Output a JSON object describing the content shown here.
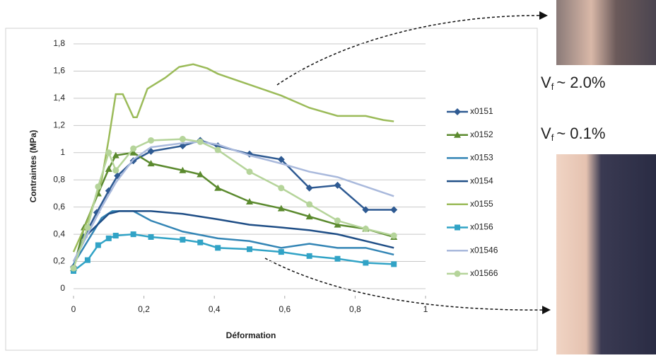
{
  "chart_data": {
    "type": "line",
    "xlabel": "Déformation",
    "ylabel": "Contraintes (MPa)",
    "xlim": [
      0,
      1
    ],
    "ylim": [
      0,
      1.8
    ],
    "xticks": [
      0,
      {
        "value": 0.2,
        "label": "0,2"
      },
      {
        "value": 0.4,
        "label": "0,4"
      },
      {
        "value": 0.6,
        "label": "0,6"
      },
      {
        "value": 0.8,
        "label": "0,8"
      },
      1
    ],
    "yticks": [
      0,
      {
        "value": 0.2,
        "label": "0,2"
      },
      {
        "value": 0.4,
        "label": "0,4"
      },
      {
        "value": 0.6,
        "label": "0,6"
      },
      {
        "value": 0.8,
        "label": "0,8"
      },
      1,
      {
        "value": 1.2,
        "label": "1,2"
      },
      {
        "value": 1.4,
        "label": "1,4"
      },
      {
        "value": 1.6,
        "label": "1,6"
      },
      {
        "value": 1.8,
        "label": "1,8"
      }
    ],
    "grid": true,
    "legend": "right",
    "series": [
      {
        "name": "x0151",
        "color": "#2e5a92",
        "marker": "diamond",
        "x": [
          0,
          0.03,
          0.066,
          0.1,
          0.125,
          0.17,
          0.22,
          0.31,
          0.36,
          0.41,
          0.5,
          0.59,
          0.67,
          0.75,
          0.83,
          0.91
        ],
        "values": [
          0.16,
          0.38,
          0.56,
          0.72,
          0.83,
          0.94,
          1.01,
          1.05,
          1.09,
          1.05,
          0.99,
          0.95,
          0.74,
          0.76,
          0.58,
          0.58
        ]
      },
      {
        "name": "x0152",
        "color": "#5b8a2e",
        "marker": "triangle",
        "x": [
          0,
          0.03,
          0.07,
          0.1,
          0.12,
          0.17,
          0.22,
          0.31,
          0.36,
          0.41,
          0.5,
          0.59,
          0.67,
          0.75,
          0.83,
          0.91
        ],
        "values": [
          0.15,
          0.45,
          0.7,
          0.88,
          0.98,
          1.0,
          0.92,
          0.87,
          0.84,
          0.74,
          0.64,
          0.59,
          0.53,
          0.47,
          0.44,
          0.38
        ]
      },
      {
        "name": "x0153",
        "color": "#3385b5",
        "marker": "none",
        "x": [
          0,
          0.04,
          0.08,
          0.11,
          0.17,
          0.22,
          0.31,
          0.41,
          0.5,
          0.59,
          0.67,
          0.75,
          0.83,
          0.91
        ],
        "values": [
          0.18,
          0.35,
          0.52,
          0.57,
          0.57,
          0.5,
          0.42,
          0.37,
          0.35,
          0.3,
          0.33,
          0.3,
          0.3,
          0.25
        ]
      },
      {
        "name": "x0154",
        "color": "#1f4e86",
        "marker": "none",
        "x": [
          0,
          0.04,
          0.1,
          0.13,
          0.22,
          0.31,
          0.41,
          0.5,
          0.59,
          0.67,
          0.75,
          0.83,
          0.91
        ],
        "values": [
          0.2,
          0.4,
          0.55,
          0.57,
          0.57,
          0.55,
          0.51,
          0.47,
          0.45,
          0.43,
          0.4,
          0.35,
          0.3
        ]
      },
      {
        "name": "x0155",
        "color": "#9bbb59",
        "marker": "none",
        "x": [
          0,
          0.04,
          0.08,
          0.1,
          0.12,
          0.14,
          0.17,
          0.18,
          0.21,
          0.26,
          0.3,
          0.34,
          0.38,
          0.41,
          0.5,
          0.59,
          0.67,
          0.75,
          0.83,
          0.88,
          0.91
        ],
        "values": [
          0.27,
          0.5,
          0.8,
          1.1,
          1.43,
          1.43,
          1.26,
          1.26,
          1.47,
          1.55,
          1.63,
          1.65,
          1.62,
          1.58,
          1.5,
          1.42,
          1.33,
          1.27,
          1.27,
          1.24,
          1.23
        ]
      },
      {
        "name": "x0156",
        "color": "#31a3c6",
        "marker": "square",
        "x": [
          0,
          0.04,
          0.07,
          0.1,
          0.12,
          0.17,
          0.22,
          0.31,
          0.36,
          0.41,
          0.5,
          0.59,
          0.67,
          0.75,
          0.83,
          0.91
        ],
        "values": [
          0.13,
          0.21,
          0.32,
          0.37,
          0.39,
          0.4,
          0.38,
          0.36,
          0.34,
          0.3,
          0.29,
          0.27,
          0.24,
          0.22,
          0.19,
          0.18
        ]
      },
      {
        "name": "x01546",
        "color": "#a9b9dc",
        "marker": "none",
        "x": [
          0,
          0.04,
          0.08,
          0.12,
          0.17,
          0.22,
          0.31,
          0.36,
          0.41,
          0.5,
          0.59,
          0.67,
          0.75,
          0.83,
          0.91
        ],
        "values": [
          0.2,
          0.4,
          0.6,
          0.78,
          0.95,
          1.04,
          1.07,
          1.08,
          1.06,
          0.98,
          0.92,
          0.86,
          0.82,
          0.75,
          0.68
        ]
      },
      {
        "name": "x01566",
        "color": "#b5d49a",
        "marker": "circle",
        "x": [
          0,
          0.04,
          0.07,
          0.1,
          0.12,
          0.17,
          0.22,
          0.31,
          0.36,
          0.41,
          0.5,
          0.59,
          0.67,
          0.75,
          0.83,
          0.91
        ],
        "values": [
          0.15,
          0.45,
          0.75,
          1.0,
          0.87,
          1.03,
          1.09,
          1.1,
          1.08,
          1.02,
          0.86,
          0.74,
          0.62,
          0.5,
          0.44,
          0.39
        ]
      }
    ],
    "annotations": [
      {
        "base": "V",
        "sub": "f",
        "text": "~ 2.0%"
      },
      {
        "base": "V",
        "sub": "f",
        "text": "~ 0.1%"
      }
    ]
  }
}
